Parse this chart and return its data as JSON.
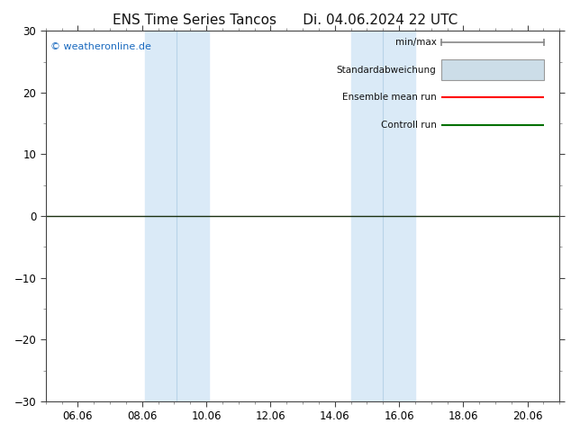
{
  "title": "ENS Time Series Tancos      Di. 04.06.2024 22 UTC",
  "xlabel_ticks": [
    "06.06",
    "08.06",
    "10.06",
    "12.06",
    "14.06",
    "16.06",
    "18.06",
    "20.06"
  ],
  "xlabel_tick_positions": [
    6.0,
    8.0,
    10.0,
    12.0,
    14.0,
    16.0,
    18.0,
    20.0
  ],
  "xlim": [
    5.0,
    21.0
  ],
  "ylim": [
    -30,
    30
  ],
  "yticks": [
    -30,
    -20,
    -10,
    0,
    10,
    20,
    30
  ],
  "shaded_regions": [
    [
      8.08,
      9.0
    ],
    [
      9.0,
      10.08
    ],
    [
      14.5,
      15.5
    ],
    [
      15.5,
      16.5
    ]
  ],
  "shade_color_light": "#ddeeff",
  "shade_color_lighter": "#e8f4fb",
  "background_color": "#ffffff",
  "zero_line_color": "#1a3a1a",
  "watermark_text": "© weatheronline.de",
  "watermark_color": "#1a6abf",
  "legend_labels": [
    "min/max",
    "Standardabweichung",
    "Ensemble mean run",
    "Controll run"
  ],
  "legend_colors": [
    "#888888",
    "#ccddee",
    "#ff0000",
    "#007000"
  ],
  "legend_styles": [
    "line_tick",
    "rect",
    "line",
    "line"
  ],
  "tick_fontsize": 8.5,
  "title_fontsize": 11
}
